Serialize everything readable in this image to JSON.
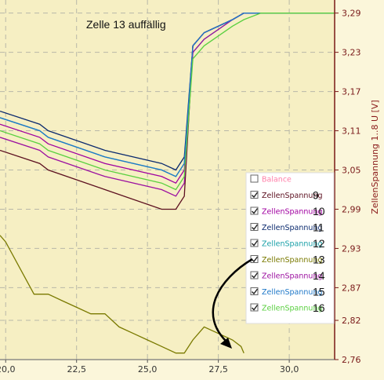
{
  "chart_data": {
    "type": "line",
    "annotation": "Zelle 13  auffällig",
    "ylabel": "ZellenSpannung 1..8  U  [V]",
    "xlim": [
      19.8,
      31.6
    ],
    "ylim": [
      2.76,
      3.31
    ],
    "x_ticks": [
      "20,0",
      "22,5",
      "25,0",
      "27,5",
      "30,0"
    ],
    "x_tick_values": [
      20.0,
      22.5,
      25.0,
      27.5,
      30.0
    ],
    "y_ticks": [
      "3,29",
      "3,23",
      "3,17",
      "3,11",
      "3,05",
      "2,99",
      "2,93",
      "2,87",
      "2,82",
      "2,76"
    ],
    "y_tick_values": [
      3.29,
      3.23,
      3.17,
      3.11,
      3.05,
      2.99,
      2.93,
      2.87,
      2.82,
      2.76
    ],
    "grid": true,
    "legend_position": "right",
    "series": [
      {
        "name": "Balance",
        "checked": false,
        "color": "#ff7fa8",
        "number": ""
      },
      {
        "name": "ZellenSpannung",
        "checked": true,
        "color": "#5c1020",
        "number": "9",
        "x": [
          19.8,
          21.2,
          21.5,
          23.5,
          25.5,
          26.0,
          26.3,
          26.6,
          27.0,
          28.0,
          28.4,
          29.0,
          31.6
        ],
        "y": [
          3.08,
          3.06,
          3.05,
          3.02,
          2.99,
          2.99,
          3.01,
          3.24,
          3.26,
          3.28,
          3.29,
          3.29,
          3.29
        ]
      },
      {
        "name": "ZellenSpannung",
        "checked": true,
        "color": "#a000a0",
        "number": "10",
        "x": [
          19.8,
          21.2,
          21.5,
          23.5,
          25.5,
          26.0,
          26.3,
          26.6,
          27.0,
          28.0,
          28.4,
          29.0,
          31.6
        ],
        "y": [
          3.12,
          3.1,
          3.09,
          3.06,
          3.04,
          3.03,
          3.05,
          3.24,
          3.26,
          3.28,
          3.29,
          3.29,
          3.29
        ]
      },
      {
        "name": "ZellenSpannung",
        "checked": true,
        "color": "#0b2a6e",
        "number": "11",
        "x": [
          19.8,
          21.2,
          21.5,
          23.5,
          25.5,
          26.0,
          26.3,
          26.6,
          27.0,
          28.0,
          28.4,
          29.0,
          31.6
        ],
        "y": [
          3.14,
          3.12,
          3.11,
          3.08,
          3.06,
          3.05,
          3.07,
          3.24,
          3.26,
          3.28,
          3.29,
          3.29,
          3.29
        ]
      },
      {
        "name": "ZellenSpannung",
        "checked": true,
        "color": "#1aa0a8",
        "number": "12",
        "x": [
          19.8,
          21.2,
          21.5,
          23.5,
          25.5,
          26.0,
          26.3,
          26.6,
          27.0,
          28.0,
          28.4,
          29.0,
          31.6
        ],
        "y": [
          3.13,
          3.11,
          3.1,
          3.07,
          3.05,
          3.04,
          3.06,
          3.23,
          3.25,
          3.28,
          3.29,
          3.29,
          3.29
        ]
      },
      {
        "name": "ZellenSpannung",
        "checked": true,
        "color": "#7a7a00",
        "number": "13",
        "x": [
          19.8,
          20.0,
          20.5,
          21.0,
          21.5,
          22.0,
          22.5,
          23.0,
          23.5,
          24.0,
          24.5,
          25.0,
          25.5,
          26.0,
          26.3,
          26.6,
          27.0,
          27.5,
          28.0,
          28.3,
          28.4
        ],
        "y": [
          2.95,
          2.94,
          2.9,
          2.86,
          2.86,
          2.85,
          2.84,
          2.83,
          2.83,
          2.81,
          2.8,
          2.79,
          2.78,
          2.77,
          2.77,
          2.79,
          2.81,
          2.8,
          2.79,
          2.78,
          2.77
        ]
      },
      {
        "name": "ZellenSpannung",
        "checked": true,
        "color": "#9c10a0",
        "number": "14",
        "x": [
          19.8,
          21.2,
          21.5,
          23.5,
          25.5,
          26.0,
          26.3,
          26.6,
          27.0,
          28.0,
          28.4,
          29.0,
          31.6
        ],
        "y": [
          3.1,
          3.08,
          3.07,
          3.04,
          3.02,
          3.01,
          3.03,
          3.23,
          3.25,
          3.28,
          3.29,
          3.29,
          3.29
        ]
      },
      {
        "name": "ZellenSpannung",
        "checked": true,
        "color": "#1f78c8",
        "number": "15",
        "x": [
          19.8,
          21.2,
          21.5,
          23.5,
          25.5,
          26.0,
          26.3,
          26.6,
          27.0,
          28.0,
          28.4,
          29.0,
          31.6
        ],
        "y": [
          3.13,
          3.11,
          3.1,
          3.07,
          3.05,
          3.04,
          3.06,
          3.24,
          3.26,
          3.28,
          3.29,
          3.29,
          3.29
        ]
      },
      {
        "name": "ZellenSpannung",
        "checked": true,
        "color": "#5ad040",
        "number": "16",
        "x": [
          19.8,
          21.2,
          21.5,
          23.5,
          25.5,
          26.0,
          26.3,
          26.6,
          27.0,
          28.0,
          28.4,
          29.0,
          31.6
        ],
        "y": [
          3.11,
          3.09,
          3.08,
          3.05,
          3.03,
          3.02,
          3.04,
          3.22,
          3.24,
          3.27,
          3.28,
          3.29,
          3.29
        ]
      }
    ]
  }
}
